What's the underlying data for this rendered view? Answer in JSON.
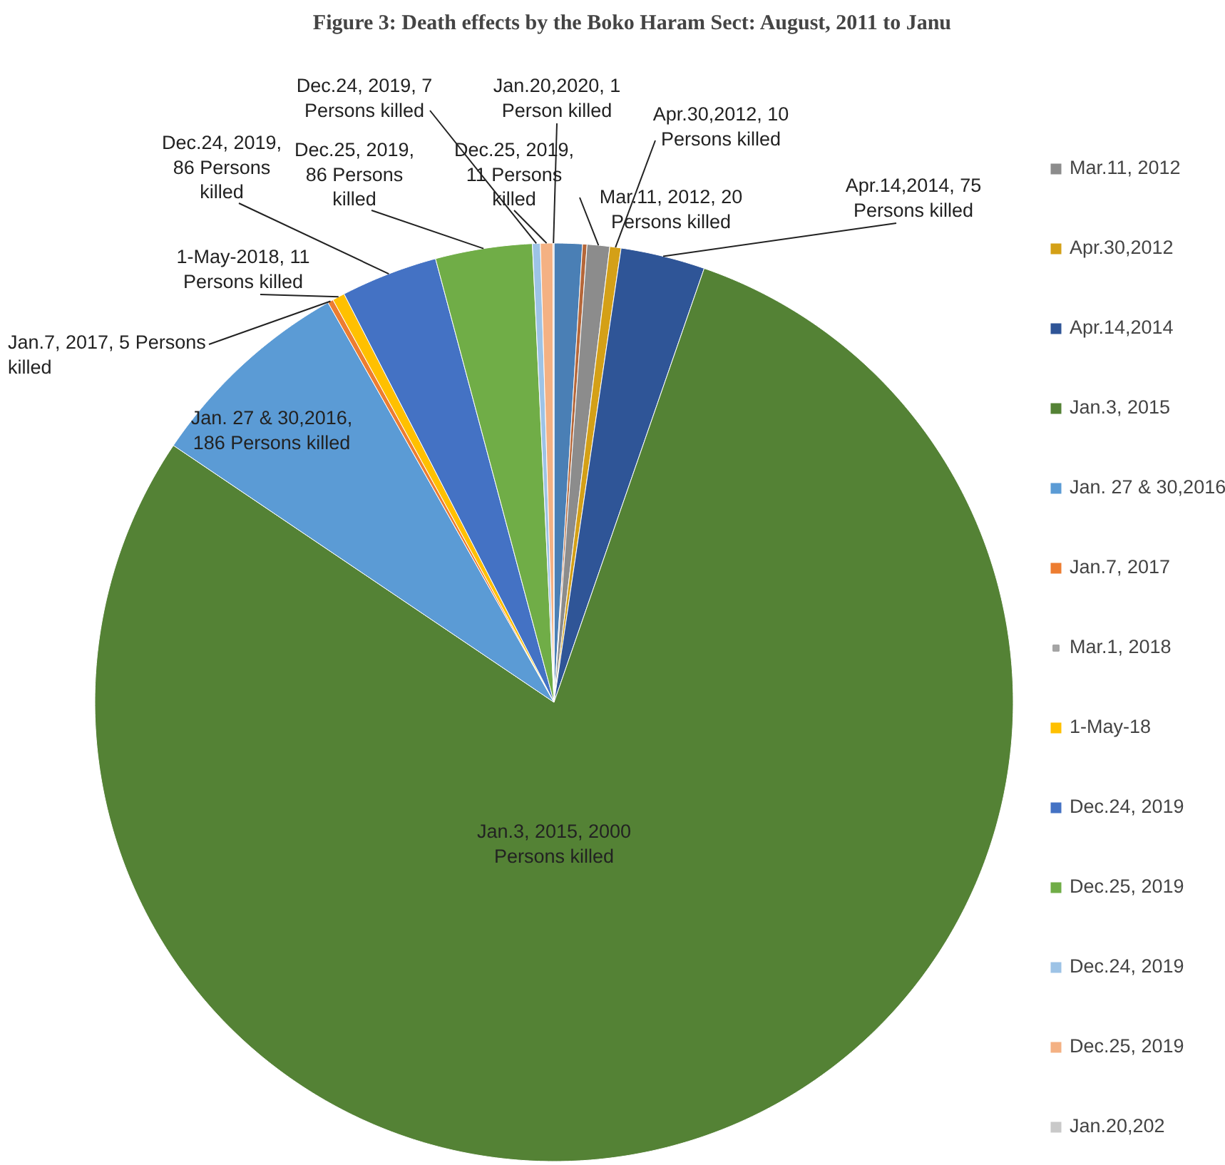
{
  "chart_data": {
    "type": "pie",
    "title": "Figure 3: Death effects by the Boko Haram Sect:  August, 2011 to Janu",
    "categories": [
      null,
      null,
      "Mar.11, 2012",
      "Apr.30,2012",
      "Apr.14,2014",
      "Jan.3, 2015",
      "Jan. 27 & 30,2016",
      "Jan.7, 2017",
      "Mar.1, 2018",
      "1-May-18",
      "Dec.24, 2019",
      "Dec.25, 2019",
      "Dec.24, 2019",
      "Dec.25, 2019",
      "Jan.20,202"
    ],
    "values": [
      25,
      4,
      20,
      10,
      75,
      2000,
      186,
      5,
      null,
      11,
      86,
      86,
      7,
      11,
      1
    ],
    "colors": [
      "#4a7fb5",
      "#b5673a",
      "#8c8c8c",
      "#d4a017",
      "#2f5597",
      "#548235",
      "#5b9bd5",
      "#ed7d31",
      "#a5a5a5",
      "#ffc000",
      "#4472c4",
      "#70ad47",
      "#9dc3e6",
      "#f4b183",
      "#c9c9c9"
    ],
    "value_labels": [
      null,
      null,
      "Mar.11, 2012, 20 Persons killed",
      "Apr.30,2012, 10 Persons killed",
      "Apr.14,2014, 75 Persons killed",
      "Jan.3, 2015, 2000 Persons killed",
      "Jan. 27 & 30,2016, 186 Persons killed",
      "Jan.7, 2017, 5 Persons killed",
      null,
      "1-May-2018, 11 Persons killed",
      "Dec.24, 2019, 86 Persons killed",
      "Dec.25, 2019, 86 Persons killed",
      "Dec.24, 2019, 7 Persons killed",
      "Dec.25, 2019, 11 Persons killed",
      "Jan.20,2020, 1 Person killed"
    ],
    "legend": "right"
  }
}
